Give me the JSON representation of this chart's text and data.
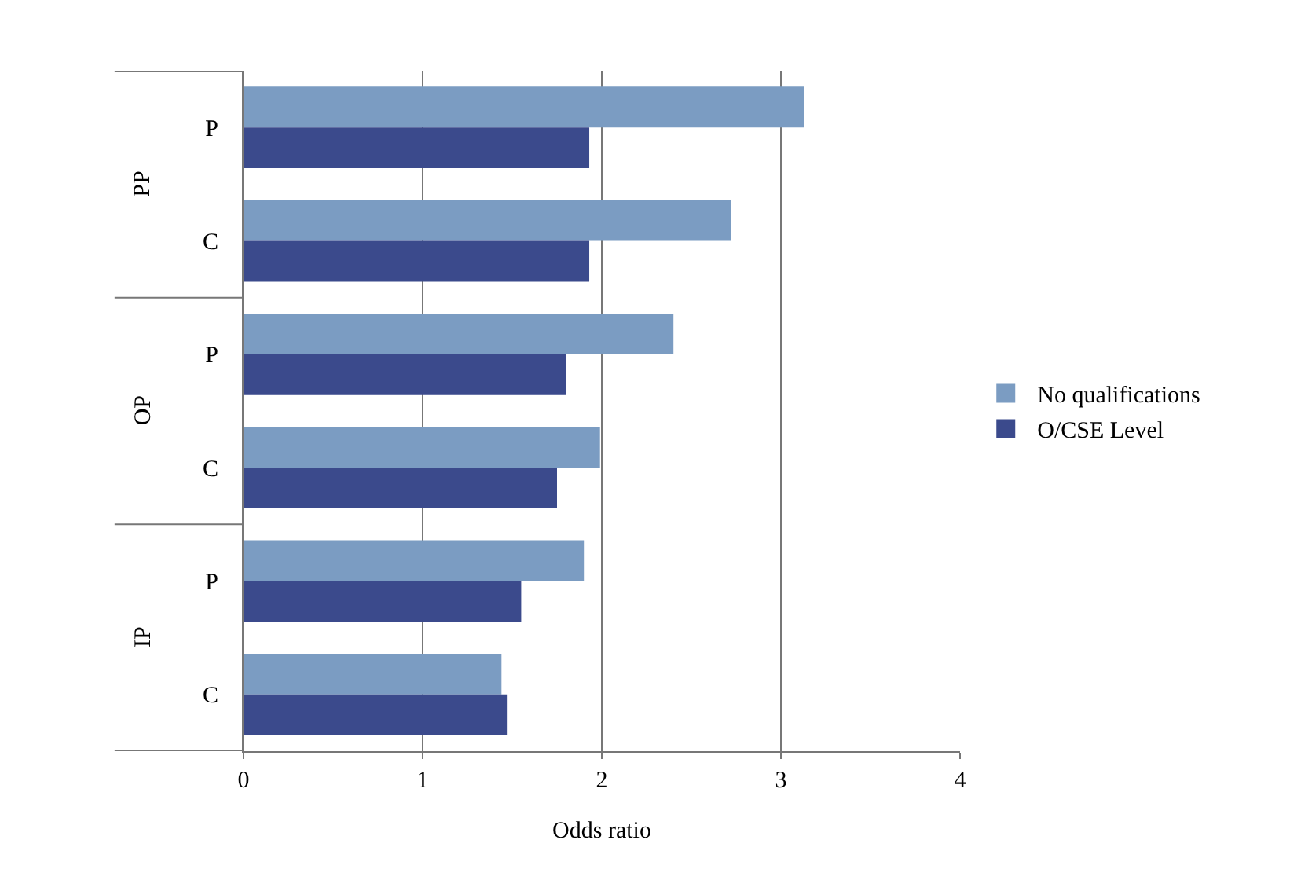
{
  "chart_data": {
    "type": "bar",
    "orientation": "horizontal",
    "xlabel": "Odds ratio",
    "categories": [
      "P",
      "C",
      "P",
      "C",
      "P",
      "C"
    ],
    "annotations": [
      "PP",
      "OP",
      "IP"
    ],
    "series": [
      {
        "name": "No qualifications",
        "color": "#7b9cc2",
        "values": [
          3.13,
          2.72,
          2.4,
          1.99,
          1.9,
          1.44
        ]
      },
      {
        "name": "O/CSE Level",
        "color": "#3b4a8c",
        "values": [
          1.93,
          1.93,
          1.8,
          1.75,
          1.55,
          1.47
        ]
      }
    ],
    "xlim": [
      0,
      4
    ],
    "xticks": [
      0,
      1,
      2,
      3,
      4
    ],
    "grid": "x",
    "legend": "right"
  }
}
